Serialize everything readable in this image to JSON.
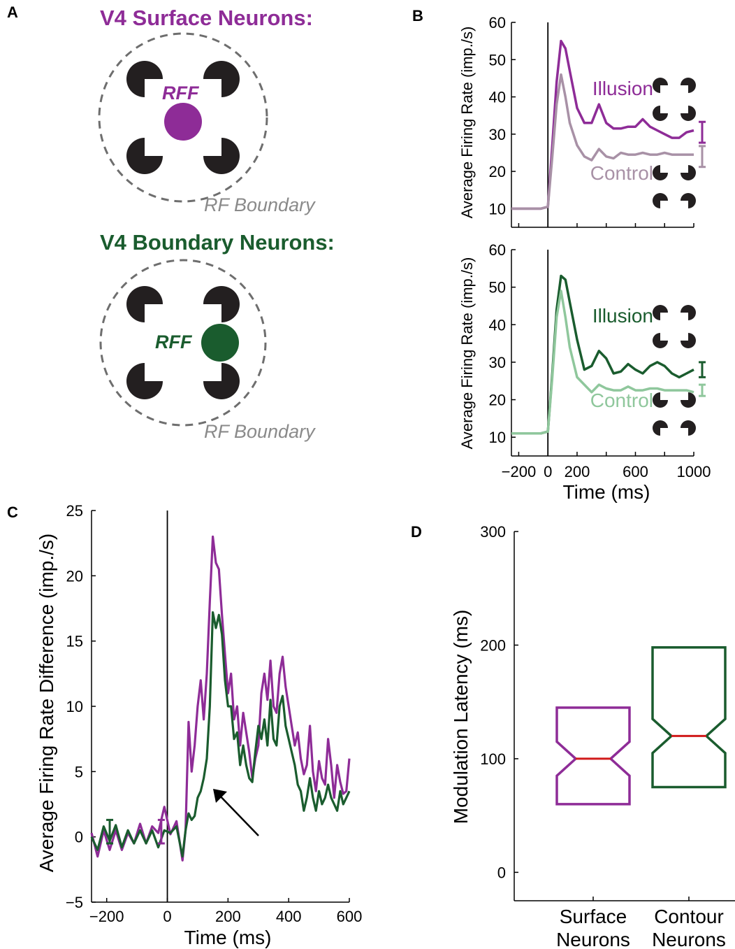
{
  "colors": {
    "surface": "#8e2c97",
    "surface_light": "#a891a6",
    "boundary": "#1a5c2e",
    "boundary_light": "#8fc79c",
    "median": "#d11a1a",
    "dashed": "#6e6e6e",
    "inducer": "#231f20"
  },
  "panel_a": {
    "letter": "A",
    "surface_title": "V4 Surface Neurons:",
    "boundary_title": "V4 Boundary Neurons:",
    "rff": "RFF",
    "rf_boundary": "RF Boundary"
  },
  "panel_b": {
    "letter": "B",
    "ylabel": "Average Firing Rate (imp./s)",
    "xlabel": "Time (ms)",
    "illusion_label": "Illusion",
    "control_label": "Control"
  },
  "panel_c": {
    "letter": "C",
    "ylabel": "Average Firing Rate Difference (imp./s)",
    "xlabel": "Time (ms)"
  },
  "panel_d": {
    "letter": "D",
    "ylabel": "Modulation Latency (ms)",
    "categories": [
      "Surface\nNeurons",
      "Contour\nNeurons"
    ]
  },
  "chart_data": [
    {
      "panel": "B-top",
      "type": "line",
      "title": "",
      "xlabel": "",
      "ylabel": "Average Firing Rate (imp./s)",
      "xlim": [
        -250,
        1000
      ],
      "ylim": [
        5,
        60
      ],
      "yticks": [
        10,
        20,
        30,
        40,
        50,
        60
      ],
      "x": [
        -250,
        -150,
        -50,
        0,
        30,
        60,
        90,
        120,
        150,
        200,
        250,
        300,
        350,
        400,
        450,
        500,
        550,
        600,
        650,
        700,
        750,
        800,
        850,
        900,
        950,
        1000
      ],
      "series": [
        {
          "name": "Illusion",
          "color": "#8e2c97",
          "values": [
            10,
            10,
            10,
            10.5,
            27,
            44,
            55,
            53,
            47,
            37,
            33,
            33,
            38,
            33,
            31.5,
            31.5,
            32,
            32,
            34,
            32,
            31,
            30,
            29,
            29,
            30.5,
            31
          ]
        },
        {
          "name": "Control",
          "color": "#a891a6",
          "values": [
            10,
            10,
            10,
            10.5,
            24,
            38,
            46,
            40,
            33,
            27,
            24,
            23,
            26,
            24,
            23.5,
            25,
            24.5,
            24.5,
            25,
            24.5,
            24.5,
            25,
            24.5,
            24.5,
            24.5,
            24.5
          ]
        }
      ],
      "error_bars": [
        {
          "series": "Illusion",
          "center": 30.5,
          "half": 2.8
        },
        {
          "series": "Control",
          "center": 24,
          "half": 2.8
        }
      ]
    },
    {
      "panel": "B-bottom",
      "type": "line",
      "title": "",
      "xlabel": "Time (ms)",
      "ylabel": "Average Firing Rate (imp./s)",
      "xlim": [
        -250,
        1000
      ],
      "ylim": [
        5,
        60
      ],
      "xticks": [
        -200,
        0,
        200,
        600,
        1000
      ],
      "yticks": [
        10,
        20,
        30,
        40,
        50,
        60
      ],
      "x": [
        -250,
        -150,
        -50,
        0,
        30,
        60,
        90,
        120,
        150,
        200,
        250,
        300,
        350,
        400,
        450,
        500,
        550,
        600,
        650,
        700,
        750,
        800,
        850,
        900,
        950,
        1000
      ],
      "series": [
        {
          "name": "Illusion",
          "color": "#1a5c2e",
          "values": [
            11,
            11,
            11,
            11.5,
            27,
            44,
            53,
            52,
            46,
            36,
            28,
            29,
            33,
            31,
            27,
            27.5,
            29.5,
            28,
            27,
            29,
            30,
            29,
            27,
            26,
            27,
            28
          ]
        },
        {
          "name": "Control",
          "color": "#8fc79c",
          "values": [
            11,
            11,
            11,
            11.5,
            26,
            42,
            49,
            42,
            34,
            26,
            24,
            22,
            24,
            23,
            22.5,
            22.5,
            23.5,
            22.5,
            22.5,
            23,
            23,
            22.5,
            22.5,
            22.5,
            22.5,
            22
          ]
        }
      ],
      "error_bars": [
        {
          "series": "Illusion",
          "center": 28,
          "half": 2.0
        },
        {
          "series": "Control",
          "center": 22.5,
          "half": 1.5
        }
      ]
    },
    {
      "panel": "C",
      "type": "line",
      "title": "",
      "xlabel": "Time (ms)",
      "ylabel": "Average Firing Rate Difference (imp./s)",
      "xlim": [
        -250,
        600
      ],
      "ylim": [
        -5,
        25
      ],
      "xticks": [
        -200,
        0,
        200,
        400,
        600
      ],
      "yticks": [
        -5,
        0,
        5,
        10,
        15,
        20,
        25
      ],
      "x": [
        -250,
        -230,
        -210,
        -190,
        -170,
        -150,
        -130,
        -110,
        -90,
        -70,
        -50,
        -30,
        -10,
        10,
        30,
        50,
        60,
        70,
        80,
        90,
        100,
        110,
        120,
        130,
        140,
        150,
        160,
        170,
        180,
        190,
        200,
        210,
        220,
        230,
        240,
        250,
        260,
        270,
        280,
        290,
        300,
        310,
        320,
        330,
        340,
        350,
        360,
        370,
        380,
        390,
        400,
        410,
        420,
        430,
        440,
        450,
        460,
        470,
        480,
        490,
        500,
        510,
        520,
        530,
        540,
        550,
        560,
        570,
        580,
        590,
        600
      ],
      "series": [
        {
          "name": "Surface",
          "color": "#8e2c97",
          "values": [
            0.3,
            -1.5,
            0.5,
            -1.0,
            0.5,
            -1.0,
            0.3,
            -0.5,
            1.0,
            -0.5,
            0.8,
            0.3,
            2.3,
            0.2,
            1.2,
            -1.8,
            0.5,
            8.8,
            5.0,
            7.0,
            10.0,
            12.0,
            9.0,
            12.5,
            18.0,
            23.0,
            21.0,
            20.5,
            17.0,
            14.0,
            11.0,
            12.5,
            9.0,
            10.0,
            7.0,
            9.5,
            8.0,
            6.5,
            4.5,
            6.0,
            7.0,
            11.0,
            12.5,
            10.5,
            13.5,
            10.0,
            9.5,
            12.5,
            13.8,
            11.5,
            10.0,
            8.5,
            7.0,
            8.0,
            6.0,
            4.8,
            5.5,
            8.5,
            5.0,
            3.5,
            5.8,
            4.5,
            4.0,
            7.5,
            5.5,
            3.0,
            5.5,
            4.2,
            3.3,
            3.5,
            6.0
          ]
        },
        {
          "name": "Contour",
          "color": "#1a5c2e",
          "values": [
            0.0,
            -1.0,
            0.8,
            -0.3,
            0.9,
            -0.8,
            0.5,
            -0.5,
            0.5,
            -0.5,
            0.5,
            -0.8,
            0.5,
            0.3,
            0.8,
            -1.5,
            0.5,
            1.8,
            1.3,
            1.6,
            3.0,
            3.5,
            4.5,
            6.0,
            10.0,
            17.2,
            16.0,
            17.0,
            15.5,
            12.0,
            10.0,
            10.0,
            7.5,
            8.0,
            5.5,
            7.0,
            5.5,
            4.5,
            4.2,
            6.5,
            8.5,
            7.5,
            9.0,
            7.0,
            10.5,
            7.5,
            7.0,
            10.0,
            10.8,
            8.5,
            7.5,
            6.5,
            5.5,
            4.0,
            3.5,
            2.0,
            3.0,
            4.5,
            3.0,
            2.0,
            3.5,
            2.5,
            3.0,
            4.0,
            3.0,
            2.5,
            2.0,
            3.5,
            2.5,
            3.0,
            3.5
          ]
        }
      ]
    },
    {
      "panel": "D",
      "type": "box",
      "title": "",
      "xlabel": "",
      "ylabel": "Modulation Latency (ms)",
      "ylim": [
        -25,
        300
      ],
      "yticks": [
        0,
        100,
        200,
        300
      ],
      "categories": [
        "Surface Neurons",
        "Contour Neurons"
      ],
      "boxes": [
        {
          "name": "Surface Neurons",
          "color": "#8e2c97",
          "median": 100,
          "q1": 60,
          "q3": 145,
          "notch_low": 85,
          "notch_high": 115
        },
        {
          "name": "Contour Neurons",
          "color": "#1a5c2e",
          "median": 120,
          "q1": 75,
          "q3": 198,
          "notch_low": 105,
          "notch_high": 135
        }
      ]
    }
  ]
}
